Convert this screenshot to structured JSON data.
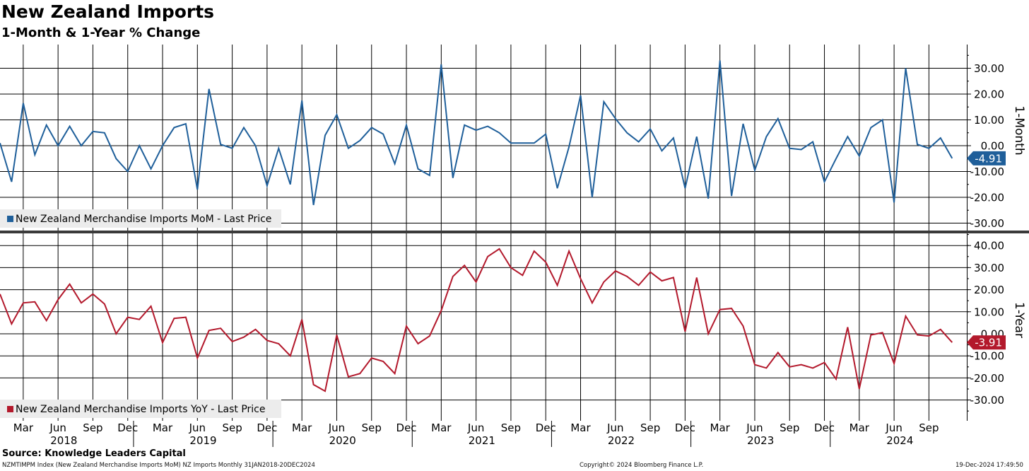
{
  "header": {
    "title": "New Zealand Imports",
    "subtitle": "1-Month & 1-Year % Change"
  },
  "footer": {
    "source": "Source: Knowledge Leaders Capital",
    "index_info": "NZMTIMPM Index (New Zealand Merchandise Imports MoM) NZ Imports  Monthly 31JAN2018-20DEC2024",
    "copyright": "Copyright© 2024 Bloomberg Finance L.P.",
    "timestamp": "19-Dec-2024 17:49:50"
  },
  "colors": {
    "mom": "#1f5f9a",
    "yoy": "#b3192c",
    "grid": "#000000"
  },
  "chart_data": [
    {
      "type": "line",
      "axis_title": "1-Month",
      "legend": "New Zealand Merchandise Imports MoM - Last Price",
      "legend_position": "bottom-left",
      "last_value_label": "-4.91",
      "ylim": [
        -35,
        40
      ],
      "yticks": [
        30,
        20,
        10,
        0,
        -10,
        -20,
        -30
      ],
      "ytick_labels": [
        "30.00",
        "20.00",
        "10.00",
        "0.00",
        "-10.00",
        "-20.00",
        "-30.00"
      ],
      "grid": true,
      "series": [
        {
          "name": "New Zealand Merchandise Imports MoM",
          "start": "2018-01",
          "values": [
            1,
            -14,
            16.5,
            -3.5,
            8,
            0,
            7.5,
            0,
            5.5,
            5,
            -5,
            -10,
            0,
            -9,
            0,
            7,
            8.5,
            -17,
            22,
            0.5,
            -1,
            7,
            0,
            -15.5,
            -1,
            -15,
            17.5,
            -23,
            4,
            12,
            -1,
            2,
            7,
            4.5,
            -7,
            8,
            -9,
            -11.5,
            31.5,
            -12.5,
            8,
            6,
            7.5,
            5,
            1,
            1,
            1,
            4.5,
            -16.5,
            -0.5,
            19.5,
            -20,
            17,
            10.5,
            5,
            1.5,
            6.5,
            -2,
            3,
            -16.5,
            3.5,
            -20.5,
            33,
            -19.5,
            8.5,
            -9.5,
            3.5,
            10.5,
            -1,
            -1.5,
            1.5,
            -14,
            -5,
            3.5,
            -4,
            7,
            10,
            -22,
            30,
            0.5,
            -1,
            3,
            -4.91
          ]
        }
      ]
    },
    {
      "type": "line",
      "axis_title": "1-Year",
      "legend": "New Zealand Merchandise Imports YoY - Last Price",
      "legend_position": "bottom-left",
      "last_value_label": "-3.91",
      "ylim": [
        -40,
        45
      ],
      "yticks": [
        40,
        30,
        20,
        10,
        0,
        -10,
        -20,
        -30
      ],
      "ytick_labels": [
        "40.00",
        "30.00",
        "20.00",
        "10.00",
        "0.00",
        "-10.00",
        "-20.00",
        "-30.00"
      ],
      "grid": true,
      "series": [
        {
          "name": "New Zealand Merchandise Imports YoY",
          "start": "2018-01",
          "values": [
            18,
            4.5,
            14,
            14.5,
            6,
            15.5,
            22.5,
            14,
            18,
            13.5,
            0,
            7.5,
            6.5,
            12.5,
            -4,
            7,
            7.5,
            -11,
            1.5,
            2.5,
            -3.5,
            -1.5,
            2,
            -3,
            -4.5,
            -10,
            6.5,
            -23,
            -26,
            -0.5,
            -19.5,
            -18,
            -11,
            -12.5,
            -18,
            3.5,
            -4.5,
            -1,
            10.5,
            26,
            31,
            23.5,
            35,
            38.5,
            30,
            26.5,
            37.5,
            32.5,
            22,
            37.5,
            25,
            14,
            23.5,
            28.5,
            26,
            22,
            28,
            24,
            25.5,
            1,
            25.5,
            0,
            11,
            11.5,
            3.5,
            -14,
            -15.5,
            -8.5,
            -15,
            -14,
            -15.5,
            -13,
            -20.5,
            3,
            -25,
            -0.5,
            0.5,
            -13.5,
            8,
            -0.5,
            -1,
            2,
            -3.91
          ]
        }
      ]
    }
  ],
  "x_axis": {
    "ticks": [
      {
        "label": "Mar",
        "month": 2
      },
      {
        "label": "Jun",
        "month": 5
      },
      {
        "label": "Sep",
        "month": 8
      },
      {
        "label": "Dec",
        "month": 11
      },
      {
        "label": "Mar",
        "month": 14
      },
      {
        "label": "Jun",
        "month": 17
      },
      {
        "label": "Sep",
        "month": 20
      },
      {
        "label": "Dec",
        "month": 23
      },
      {
        "label": "Mar",
        "month": 26
      },
      {
        "label": "Jun",
        "month": 29
      },
      {
        "label": "Sep",
        "month": 32
      },
      {
        "label": "Dec",
        "month": 35
      },
      {
        "label": "Mar",
        "month": 38
      },
      {
        "label": "Jun",
        "month": 41
      },
      {
        "label": "Sep",
        "month": 44
      },
      {
        "label": "Dec",
        "month": 47
      },
      {
        "label": "Mar",
        "month": 50
      },
      {
        "label": "Jun",
        "month": 53
      },
      {
        "label": "Sep",
        "month": 56
      },
      {
        "label": "Dec",
        "month": 59
      },
      {
        "label": "Mar",
        "month": 62
      },
      {
        "label": "Jun",
        "month": 65
      },
      {
        "label": "Sep",
        "month": 68
      },
      {
        "label": "Dec",
        "month": 71
      },
      {
        "label": "Mar",
        "month": 74
      },
      {
        "label": "Jun",
        "month": 77
      },
      {
        "label": "Sep",
        "month": 80
      }
    ],
    "years": [
      {
        "label": "2018",
        "month": 5.5
      },
      {
        "label": "2019",
        "month": 17.5
      },
      {
        "label": "2020",
        "month": 29.5
      },
      {
        "label": "2021",
        "month": 41.5
      },
      {
        "label": "2022",
        "month": 53.5
      },
      {
        "label": "2023",
        "month": 65.5
      },
      {
        "label": "2024",
        "month": 77.5
      }
    ],
    "year_boundaries": [
      11.5,
      23.5,
      35.5,
      47.5,
      59.5,
      71.5
    ]
  }
}
